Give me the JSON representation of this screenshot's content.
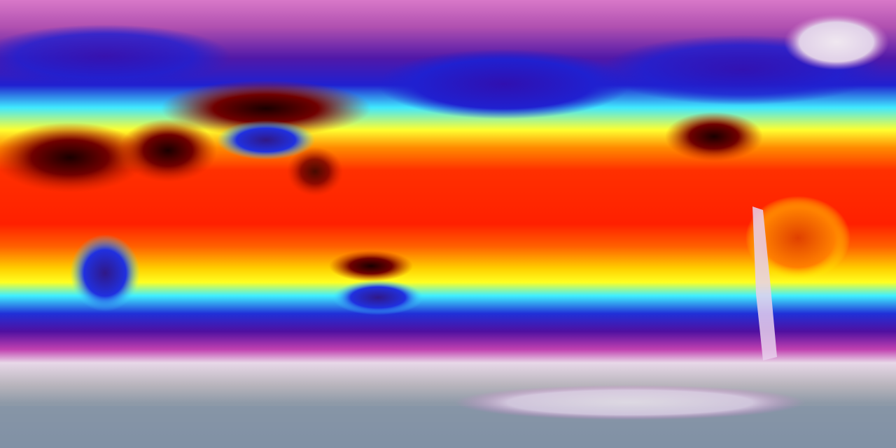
{
  "map": {
    "projection": "equirectangular",
    "colormap": [
      "#8090a0",
      "#b0b0b8",
      "#e8d8e8",
      "#c040b0",
      "#5010a0",
      "#2020d0",
      "#40f0ff",
      "#ffff20",
      "#ff8000",
      "#ff2000",
      "#8a0000",
      "#200000"
    ],
    "colors": {
      "polar_ice": "#e8e0ea",
      "antarctic": "#8a98a8",
      "cold_ocean": "#2a18c0",
      "temperate": "#40f0ff",
      "subtropical": "#ffff20",
      "tropical": "#ff2a00",
      "hot_desert": "#300000"
    }
  }
}
